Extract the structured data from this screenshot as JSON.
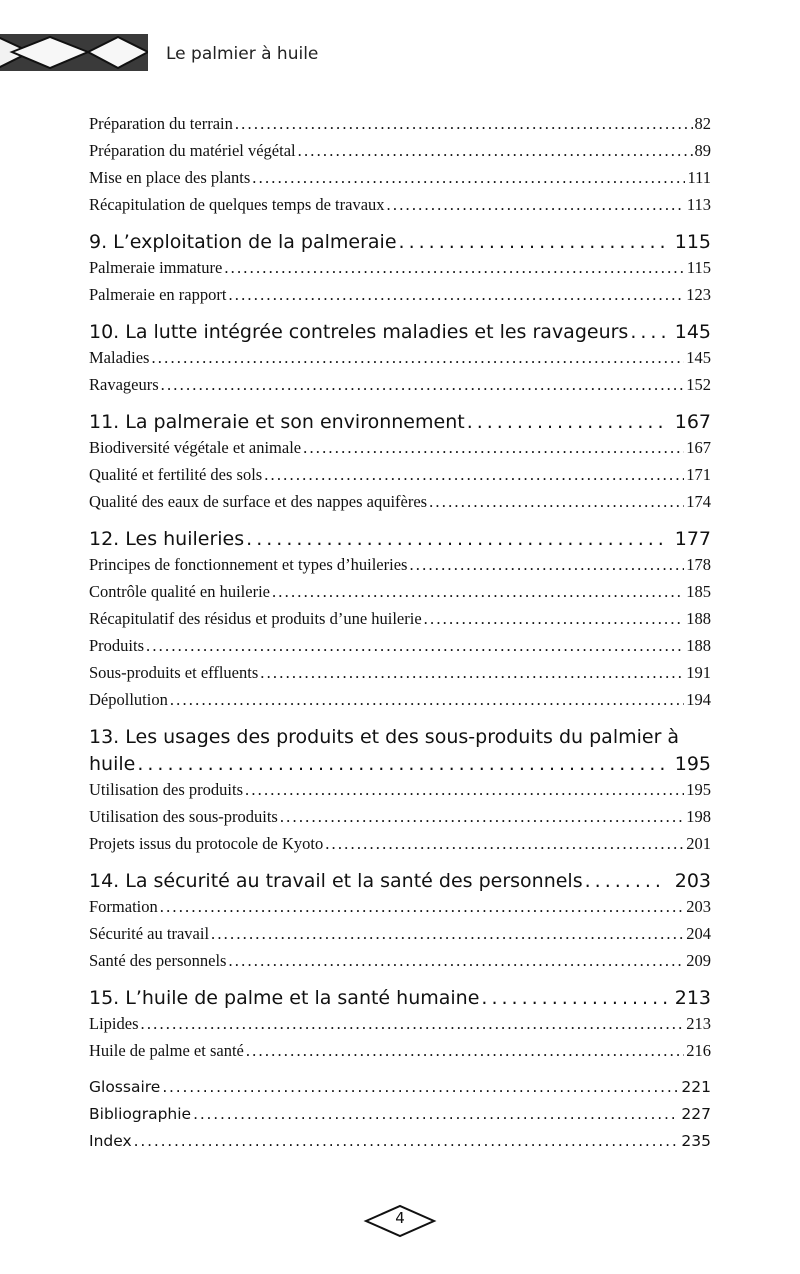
{
  "header": {
    "running_title": "Le palmier à huile"
  },
  "toc": [
    {
      "type": "entry",
      "label": "Préparation du terrain",
      "page": "82"
    },
    {
      "type": "entry",
      "label": "Préparation du matériel végétal",
      "page": "89"
    },
    {
      "type": "entry",
      "label": "Mise en place des plants",
      "page": "111"
    },
    {
      "type": "entry",
      "label": "Récapitulation de quelques temps de travaux",
      "page": "113"
    },
    {
      "type": "chapter",
      "label": "9. L’exploitation de la palmeraie",
      "page": "115"
    },
    {
      "type": "entry",
      "label": "Palmeraie immature",
      "page": "115"
    },
    {
      "type": "entry",
      "label": "Palmeraie en rapport",
      "page": "123"
    },
    {
      "type": "chapter",
      "label": "10. La lutte intégrée contreles maladies et les ravageurs",
      "page": "145"
    },
    {
      "type": "entry",
      "label": "Maladies",
      "page": "145"
    },
    {
      "type": "entry",
      "label": "Ravageurs",
      "page": "152"
    },
    {
      "type": "chapter",
      "label": "11. La palmeraie et son environnement",
      "page": "167"
    },
    {
      "type": "entry",
      "label": "Biodiversité végétale et animale",
      "page": "167"
    },
    {
      "type": "entry",
      "label": "Qualité et fertilité des sols",
      "page": "171"
    },
    {
      "type": "entry",
      "label": "Qualité des eaux de surface et des nappes aquifères",
      "page": "174"
    },
    {
      "type": "chapter",
      "label": "12. Les huileries",
      "page": "177"
    },
    {
      "type": "entry",
      "label": "Principes de fonctionnement et types d’huileries",
      "page": "178"
    },
    {
      "type": "entry",
      "label": "Contrôle qualité en huilerie",
      "page": "185"
    },
    {
      "type": "entry",
      "label": "Récapitulatif des résidus et produits d’une huilerie",
      "page": "188"
    },
    {
      "type": "entry",
      "label": "Produits",
      "page": "188"
    },
    {
      "type": "entry",
      "label": "Sous-produits et effluents",
      "page": "191"
    },
    {
      "type": "entry",
      "label": "Dépollution",
      "page": "194"
    },
    {
      "type": "chapter2",
      "label": "13. Les usages des produits et des sous-produits du palmier à",
      "label2": "huile",
      "page": "195"
    },
    {
      "type": "entry",
      "label": "Utilisation des produits",
      "page": "195"
    },
    {
      "type": "entry",
      "label": "Utilisation des sous-produits",
      "page": "198"
    },
    {
      "type": "entry",
      "label": "Projets issus du protocole de Kyoto",
      "page": "201"
    },
    {
      "type": "chapter",
      "label": "14. La sécurité au travail et la santé des personnels",
      "page": "203"
    },
    {
      "type": "entry",
      "label": "Formation",
      "page": "203"
    },
    {
      "type": "entry",
      "label": "Sécurité au travail",
      "page": "204"
    },
    {
      "type": "entry",
      "label": "Santé des personnels",
      "page": "209"
    },
    {
      "type": "chapter",
      "label": "15. L’huile de palme et la santé humaine",
      "page": "213"
    },
    {
      "type": "entry",
      "label": "Lipides",
      "page": "213"
    },
    {
      "type": "entry",
      "label": "Huile de palme et santé",
      "page": "216"
    },
    {
      "type": "back",
      "label": "Glossaire",
      "page": "221"
    },
    {
      "type": "back",
      "label": "Bibliographie",
      "page": "227"
    },
    {
      "type": "back",
      "label": "Index",
      "page": "235"
    }
  ],
  "footer": {
    "page_number": "4"
  }
}
